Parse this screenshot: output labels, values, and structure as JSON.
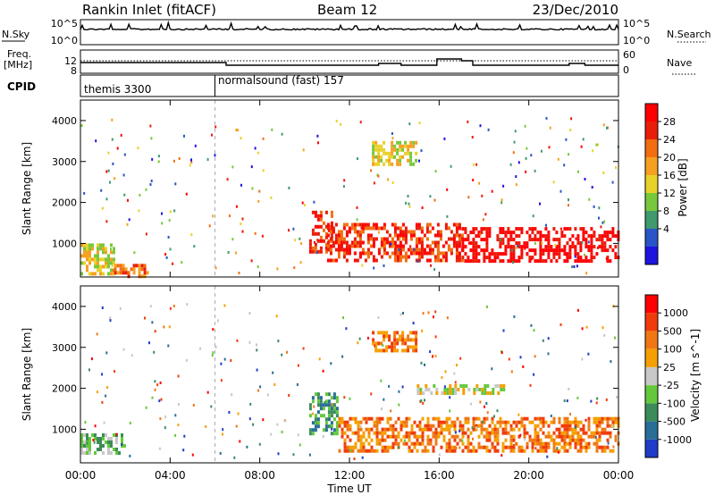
{
  "header": {
    "title": "Rankin Inlet (fitACF)",
    "beam": "Beam 12",
    "date": "23/Dec/2010"
  },
  "strips": {
    "nsky_label": "N.Sky",
    "nsearch_label": "N.Search",
    "nsky_ticks": [
      "10^5",
      "10^0"
    ],
    "nsearch_ticks": [
      "10^5",
      "10^0"
    ],
    "freq_label": "Freq.",
    "freq_unit": "[MHz]",
    "freq_ticks": [
      "12",
      "8"
    ],
    "nave_label": "Nave",
    "nave_ticks": [
      "60",
      "0"
    ],
    "cpid_label": "CPID",
    "cpid_segments": [
      {
        "name": "themis 3300",
        "start_hr": 0
      },
      {
        "name": "normalsound (fast) 157",
        "start_hr": 6
      }
    ]
  },
  "chart_data": [
    {
      "type": "heatmap",
      "name": "power-panel",
      "ylabel": "Slant Range [km]",
      "y_ticks": [
        1000,
        2000,
        3000,
        4000
      ],
      "ylim": [
        180,
        4500
      ],
      "xlim": [
        0,
        24
      ],
      "colorbar": {
        "label": "Power [dB]",
        "ticks": [
          "28",
          "24",
          "20",
          "16",
          "12",
          "8",
          "4"
        ],
        "colors": [
          "#1e14e0",
          "#2a55c8",
          "#3f9a6e",
          "#78c83c",
          "#e8d22a",
          "#f5a020",
          "#f26e10",
          "#e81e0a",
          "#ff0000"
        ]
      },
      "regions": [
        {
          "x0": 0.0,
          "x1": 1.5,
          "y0": 250,
          "y1": 1000,
          "level": 4
        },
        {
          "x0": 1.5,
          "x1": 3.0,
          "y0": 200,
          "y1": 500,
          "level": 6
        },
        {
          "x0": 10.2,
          "x1": 11.2,
          "y0": 800,
          "y1": 1800,
          "level": 7
        },
        {
          "x0": 11.0,
          "x1": 17.0,
          "y0": 600,
          "y1": 1500,
          "level": 7
        },
        {
          "x0": 17.0,
          "x1": 24.0,
          "y0": 600,
          "y1": 1400,
          "level": 8
        },
        {
          "x0": 13.0,
          "x1": 15.0,
          "y0": 2900,
          "y1": 3500,
          "level": 4
        }
      ]
    },
    {
      "type": "heatmap",
      "name": "velocity-panel",
      "ylabel": "Slant Range [km]",
      "y_ticks": [
        1000,
        2000,
        3000,
        4000
      ],
      "ylim": [
        180,
        4500
      ],
      "xlim": [
        0,
        24
      ],
      "colorbar": {
        "label": "Velocity [m s^-1]",
        "ticks": [
          "1000",
          "500",
          "100",
          "25",
          "-25",
          "-100",
          "-500",
          "-1000"
        ],
        "colors": [
          "#1e3cc8",
          "#286e96",
          "#3c8c5a",
          "#64c83c",
          "#c8c8c8",
          "#f5a000",
          "#f07814",
          "#f03c0a",
          "#ff0000"
        ]
      },
      "regions": [
        {
          "x0": 0.0,
          "x1": 2.0,
          "y0": 400,
          "y1": 900,
          "level": 3
        },
        {
          "x0": 10.2,
          "x1": 11.5,
          "y0": 900,
          "y1": 1900,
          "level": 2
        },
        {
          "x0": 11.5,
          "x1": 24.0,
          "y0": 500,
          "y1": 1300,
          "level": 6
        },
        {
          "x0": 15.0,
          "x1": 19.0,
          "y0": 1900,
          "y1": 2100,
          "level": 4
        },
        {
          "x0": 13.0,
          "x1": 15.0,
          "y0": 2900,
          "y1": 3400,
          "level": 6
        }
      ]
    }
  ],
  "x_axis": {
    "label": "Time UT",
    "ticks": [
      "00:00",
      "04:00",
      "08:00",
      "12:00",
      "16:00",
      "20:00",
      "00:00"
    ]
  }
}
